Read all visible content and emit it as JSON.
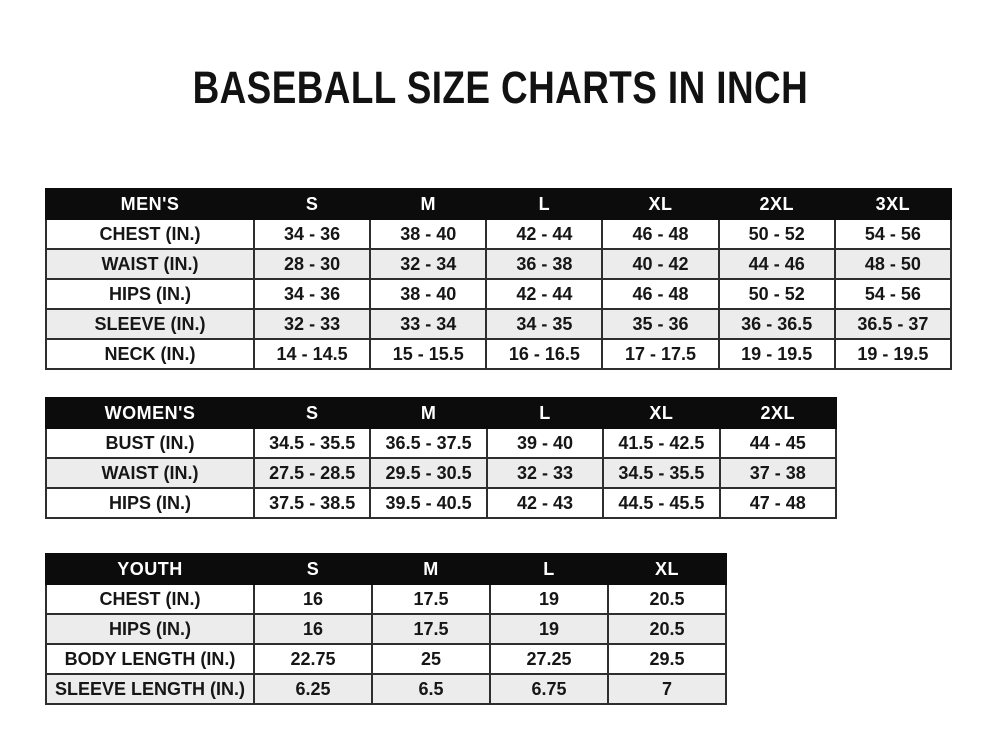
{
  "page": {
    "title": "BASEBALL SIZE CHARTS IN INCH"
  },
  "colors": {
    "page_bg": "#ffffff",
    "header_bg": "#0c0c0c",
    "header_text": "#ffffff",
    "row_alt_bg": "#ececec",
    "border": "#2e2e2e",
    "text": "#161616"
  },
  "tables": [
    {
      "id": "mens",
      "group_label": "MEN'S",
      "header": [
        "MEN'S",
        "S",
        "M",
        "L",
        "XL",
        "2XL",
        "3XL"
      ],
      "rows": [
        [
          "CHEST (IN.)",
          "34 - 36",
          "38 - 40",
          "42 - 44",
          "46 - 48",
          "50 - 52",
          "54 - 56"
        ],
        [
          "WAIST (IN.)",
          "28 - 30",
          "32 - 34",
          "36 - 38",
          "40 - 42",
          "44 - 46",
          "48 - 50"
        ],
        [
          "HIPS (IN.)",
          "34 - 36",
          "38 - 40",
          "42 - 44",
          "46 - 48",
          "50 - 52",
          "54 - 56"
        ],
        [
          "SLEEVE (IN.)",
          "32 - 33",
          "33 - 34",
          "34 - 35",
          "35 - 36",
          "36 - 36.5",
          "36.5 - 37"
        ],
        [
          "NECK (IN.)",
          "14 - 14.5",
          "15 - 15.5",
          "16 - 16.5",
          "17 - 17.5",
          "19 - 19.5",
          "19 - 19.5"
        ]
      ]
    },
    {
      "id": "womens",
      "group_label": "WOMEN'S",
      "header": [
        "WOMEN'S",
        "S",
        "M",
        "L",
        "XL",
        "2XL"
      ],
      "rows": [
        [
          "BUST (IN.)",
          "34.5 - 35.5",
          "36.5 - 37.5",
          "39 - 40",
          "41.5 - 42.5",
          "44 - 45"
        ],
        [
          "WAIST (IN.)",
          "27.5 - 28.5",
          "29.5 - 30.5",
          "32 - 33",
          "34.5 - 35.5",
          "37 - 38"
        ],
        [
          "HIPS (IN.)",
          "37.5 - 38.5",
          "39.5 - 40.5",
          "42 - 43",
          "44.5 - 45.5",
          "47 - 48"
        ]
      ]
    },
    {
      "id": "youth",
      "group_label": "YOUTH",
      "header": [
        "YOUTH",
        "S",
        "M",
        "L",
        "XL"
      ],
      "rows": [
        [
          "CHEST (IN.)",
          "16",
          "17.5",
          "19",
          "20.5"
        ],
        [
          "HIPS (IN.)",
          "16",
          "17.5",
          "19",
          "20.5"
        ],
        [
          "BODY LENGTH (IN.)",
          "22.75",
          "25",
          "27.25",
          "29.5"
        ],
        [
          "SLEEVE LENGTH (IN.)",
          "6.25",
          "6.5",
          "6.75",
          "7"
        ]
      ]
    }
  ]
}
